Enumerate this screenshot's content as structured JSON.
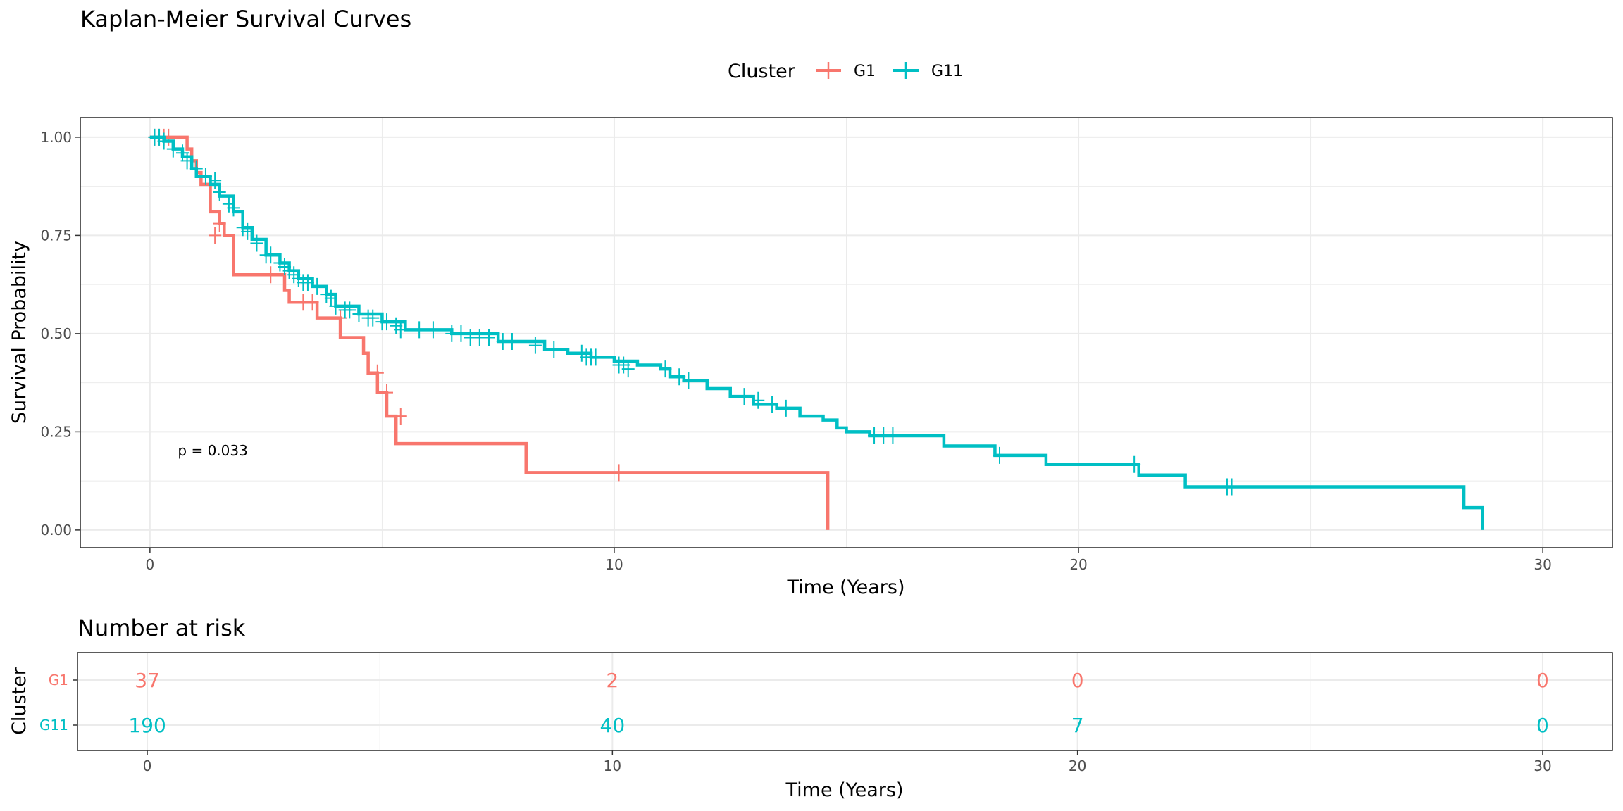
{
  "chart_data": [
    {
      "type": "line",
      "subtype": "step-survival",
      "title": "Kaplan-Meier Survival Curves",
      "xlabel": "Time (Years)",
      "ylabel": "Survival Probability",
      "xlim": [
        -1.5,
        31.5
      ],
      "ylim": [
        -0.045,
        1.05
      ],
      "xticks": [
        0,
        10,
        20,
        30
      ],
      "xtick_labels": [
        "0",
        "10",
        "20",
        "30"
      ],
      "yticks": [
        0,
        0.25,
        0.5,
        0.75,
        1
      ],
      "ytick_labels": [
        "0.00",
        "0.25",
        "0.50",
        "0.75",
        "1.00"
      ],
      "grid": true,
      "legend": {
        "title": "Cluster",
        "position": "top"
      },
      "annotation": "p = 0.033",
      "annotation_at": [
        0.6,
        0.19
      ],
      "series": [
        {
          "name": "G1",
          "color": "#F8766D",
          "steps": [
            [
              0,
              1.0
            ],
            [
              0.8,
              0.97
            ],
            [
              0.9,
              0.94
            ],
            [
              1.0,
              0.91
            ],
            [
              1.1,
              0.88
            ],
            [
              1.3,
              0.81
            ],
            [
              1.5,
              0.78
            ],
            [
              1.6,
              0.75
            ],
            [
              1.8,
              0.72
            ],
            [
              1.8,
              0.65
            ],
            [
              2.9,
              0.65
            ],
            [
              2.9,
              0.61
            ],
            [
              3.0,
              0.58
            ],
            [
              3.6,
              0.58
            ],
            [
              3.6,
              0.54
            ],
            [
              4.1,
              0.54
            ],
            [
              4.1,
              0.49
            ],
            [
              4.6,
              0.49
            ],
            [
              4.6,
              0.45
            ],
            [
              4.7,
              0.45
            ],
            [
              4.7,
              0.4
            ],
            [
              4.9,
              0.4
            ],
            [
              4.9,
              0.35
            ],
            [
              5.1,
              0.35
            ],
            [
              5.1,
              0.29
            ],
            [
              5.3,
              0.29
            ],
            [
              5.3,
              0.22
            ],
            [
              8.1,
              0.22
            ],
            [
              8.1,
              0.146
            ],
            [
              14.6,
              0.146
            ],
            [
              14.6,
              0.0
            ]
          ],
          "censored": [
            [
              0.1,
              1.0
            ],
            [
              0.2,
              1.0
            ],
            [
              0.3,
              1.0
            ],
            [
              0.4,
              1.0
            ],
            [
              1.5,
              0.78
            ],
            [
              1.4,
              0.75
            ],
            [
              2.6,
              0.65
            ],
            [
              3.3,
              0.58
            ],
            [
              3.5,
              0.58
            ],
            [
              4.1,
              0.54
            ],
            [
              4.9,
              0.4
            ],
            [
              5.1,
              0.35
            ],
            [
              5.4,
              0.29
            ],
            [
              10.1,
              0.146
            ]
          ]
        },
        {
          "name": "G11",
          "color": "#00BFC4",
          "steps": [
            [
              0,
              1.0
            ],
            [
              0.3,
              0.99
            ],
            [
              0.5,
              0.97
            ],
            [
              0.7,
              0.95
            ],
            [
              0.9,
              0.92
            ],
            [
              1.0,
              0.9
            ],
            [
              1.3,
              0.88
            ],
            [
              1.5,
              0.85
            ],
            [
              1.8,
              0.81
            ],
            [
              2.0,
              0.77
            ],
            [
              2.2,
              0.74
            ],
            [
              2.5,
              0.7
            ],
            [
              2.8,
              0.68
            ],
            [
              3.0,
              0.66
            ],
            [
              3.2,
              0.64
            ],
            [
              3.5,
              0.62
            ],
            [
              3.8,
              0.6
            ],
            [
              4.0,
              0.57
            ],
            [
              4.5,
              0.55
            ],
            [
              5.0,
              0.53
            ],
            [
              5.5,
              0.51
            ],
            [
              6.5,
              0.5
            ],
            [
              7.5,
              0.48
            ],
            [
              8.5,
              0.46
            ],
            [
              9.0,
              0.45
            ],
            [
              9.5,
              0.44
            ],
            [
              10.0,
              0.43
            ],
            [
              10.5,
              0.42
            ],
            [
              11.0,
              0.41
            ],
            [
              11.2,
              0.39
            ],
            [
              11.5,
              0.38
            ],
            [
              12.0,
              0.36
            ],
            [
              12.5,
              0.34
            ],
            [
              13.0,
              0.32
            ],
            [
              13.5,
              0.31
            ],
            [
              14.0,
              0.29
            ],
            [
              14.5,
              0.28
            ],
            [
              14.8,
              0.26
            ],
            [
              15.0,
              0.25
            ],
            [
              15.5,
              0.24
            ],
            [
              17.1,
              0.214
            ],
            [
              18.2,
              0.19
            ],
            [
              19.3,
              0.167
            ],
            [
              21.3,
              0.14
            ],
            [
              22.3,
              0.11
            ],
            [
              28.3,
              0.057
            ],
            [
              28.7,
              0.0
            ]
          ],
          "censored": [
            [
              0.1,
              1.0
            ],
            [
              0.2,
              1.0
            ],
            [
              0.3,
              0.99
            ],
            [
              0.5,
              0.97
            ],
            [
              0.7,
              0.96
            ],
            [
              0.8,
              0.94
            ],
            [
              1.0,
              0.92
            ],
            [
              1.2,
              0.9
            ],
            [
              1.4,
              0.89
            ],
            [
              1.5,
              0.86
            ],
            [
              1.7,
              0.83
            ],
            [
              1.8,
              0.82
            ],
            [
              2.0,
              0.77
            ],
            [
              2.1,
              0.76
            ],
            [
              2.3,
              0.73
            ],
            [
              2.5,
              0.7
            ],
            [
              2.6,
              0.7
            ],
            [
              2.8,
              0.68
            ],
            [
              2.9,
              0.67
            ],
            [
              3.0,
              0.66
            ],
            [
              3.1,
              0.65
            ],
            [
              3.2,
              0.64
            ],
            [
              3.3,
              0.63
            ],
            [
              3.4,
              0.63
            ],
            [
              3.6,
              0.62
            ],
            [
              3.8,
              0.6
            ],
            [
              3.9,
              0.59
            ],
            [
              4.0,
              0.57
            ],
            [
              4.2,
              0.56
            ],
            [
              4.3,
              0.56
            ],
            [
              4.5,
              0.55
            ],
            [
              4.7,
              0.54
            ],
            [
              4.8,
              0.54
            ],
            [
              5.0,
              0.53
            ],
            [
              5.1,
              0.53
            ],
            [
              5.3,
              0.52
            ],
            [
              5.4,
              0.51
            ],
            [
              5.8,
              0.51
            ],
            [
              6.1,
              0.51
            ],
            [
              6.5,
              0.5
            ],
            [
              6.7,
              0.5
            ],
            [
              6.9,
              0.49
            ],
            [
              7.1,
              0.49
            ],
            [
              7.3,
              0.49
            ],
            [
              7.6,
              0.48
            ],
            [
              7.8,
              0.48
            ],
            [
              8.3,
              0.47
            ],
            [
              8.7,
              0.46
            ],
            [
              9.3,
              0.45
            ],
            [
              9.4,
              0.44
            ],
            [
              9.5,
              0.44
            ],
            [
              9.6,
              0.44
            ],
            [
              10.1,
              0.42
            ],
            [
              10.2,
              0.42
            ],
            [
              10.3,
              0.41
            ],
            [
              11.1,
              0.41
            ],
            [
              11.4,
              0.39
            ],
            [
              11.6,
              0.38
            ],
            [
              12.8,
              0.34
            ],
            [
              13.1,
              0.33
            ],
            [
              13.4,
              0.32
            ],
            [
              13.7,
              0.31
            ],
            [
              15.6,
              0.24
            ],
            [
              15.8,
              0.24
            ],
            [
              16.0,
              0.24
            ],
            [
              18.3,
              0.19
            ],
            [
              21.2,
              0.167
            ],
            [
              23.2,
              0.11
            ],
            [
              23.3,
              0.11
            ]
          ]
        }
      ]
    },
    {
      "type": "table",
      "title": "Number at risk",
      "xlabel": "Time (Years)",
      "ylabel": "Cluster",
      "xlim": [
        -1.5,
        31.5
      ],
      "xticks": [
        0,
        10,
        20,
        30
      ],
      "xtick_labels": [
        "0",
        "10",
        "20",
        "30"
      ],
      "grid": true,
      "rows": [
        {
          "name": "G1",
          "color": "#F8766D",
          "values": [
            "37",
            "2",
            "0",
            "0"
          ]
        },
        {
          "name": "G11",
          "color": "#00BFC4",
          "values": [
            "190",
            "40",
            "7",
            "0"
          ]
        }
      ]
    }
  ]
}
